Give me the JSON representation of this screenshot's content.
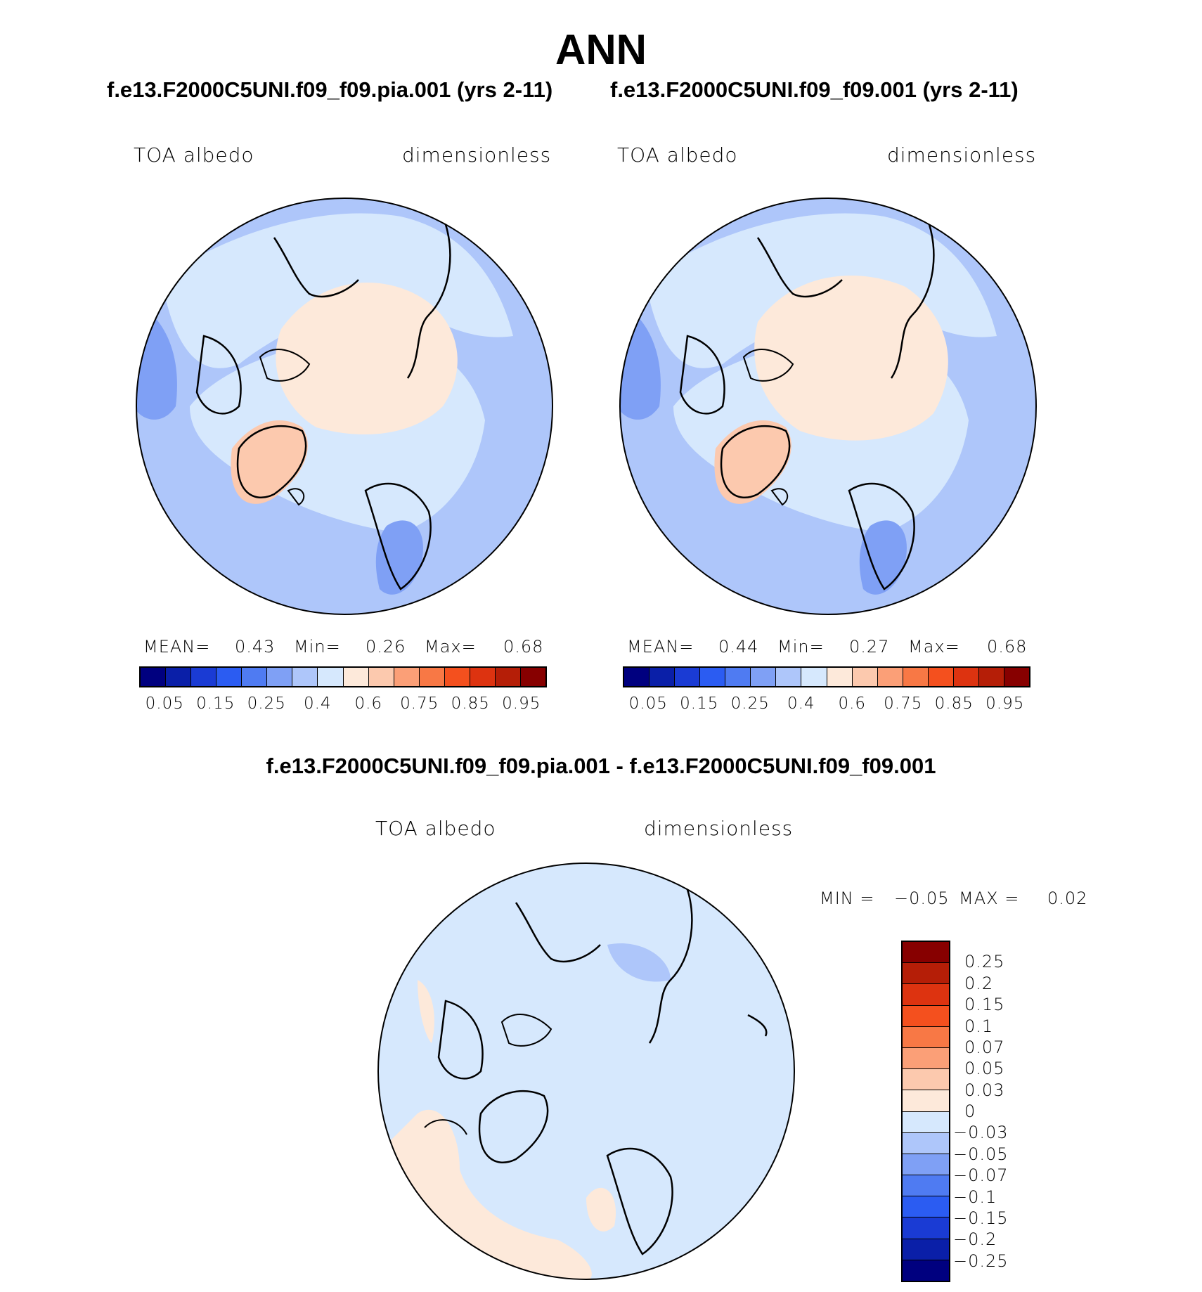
{
  "title": "ANN",
  "panels": {
    "left": {
      "case": "f.e13.F2000C5UNI.f09_f09.pia.001 (yrs 2-11)",
      "variable": "TOA albedo",
      "units": "dimensionless",
      "mean_label": "MEAN=",
      "mean": "0.43",
      "min_label": "Min=",
      "min": "0.26",
      "max_label": "Max=",
      "max": "0.68"
    },
    "right": {
      "case": "f.e13.F2000C5UNI.f09_f09.001 (yrs 2-11)",
      "variable": "TOA albedo",
      "units": "dimensionless",
      "mean_label": "MEAN=",
      "mean": "0.44",
      "min_label": "Min=",
      "min": "0.27",
      "max_label": "Max=",
      "max": "0.68"
    },
    "diff": {
      "case": "f.e13.F2000C5UNI.f09_f09.pia.001 - f.e13.F2000C5UNI.f09_f09.001",
      "variable": "TOA albedo",
      "units": "dimensionless",
      "min_label": "MIN =",
      "min": "−0.05",
      "max_label": "MAX =",
      "max": "0.02"
    }
  },
  "colorbar_main": {
    "colors": [
      "#00007f",
      "#0a1fa8",
      "#1a3bd4",
      "#2b5cf2",
      "#4f7bf2",
      "#7fa0f5",
      "#aec6fa",
      "#d6e8fd",
      "#fde9da",
      "#fcc9ae",
      "#fb9f77",
      "#f87845",
      "#f4501e",
      "#dd3310",
      "#b51e07",
      "#870000"
    ],
    "tick_labels": [
      "0.05",
      "0.15",
      "0.25",
      "0.4",
      "0.6",
      "0.75",
      "0.85",
      "0.95"
    ]
  },
  "colorbar_diff": {
    "colors": [
      "#00007f",
      "#0a1fa8",
      "#1a3bd4",
      "#2b5cf2",
      "#4f7bf2",
      "#7fa0f5",
      "#aec6fa",
      "#d6e8fd",
      "#fde9da",
      "#fcc9ae",
      "#fb9f77",
      "#f87845",
      "#f4501e",
      "#dd3310",
      "#b51e07",
      "#870000"
    ],
    "tick_labels": [
      "0.25",
      "0.2",
      "0.15",
      "0.1",
      "0.07",
      "0.05",
      "0.03",
      "0",
      "−0.03",
      "−0.05",
      "−0.07",
      "−0.1",
      "−0.15",
      "−0.2",
      "−0.25"
    ]
  }
}
